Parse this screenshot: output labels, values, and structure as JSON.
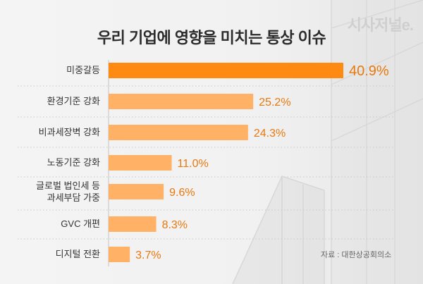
{
  "title": "우리 기업에 영향을 미치는 통상 이슈",
  "watermark": "시사저널e.",
  "source": "자료 : 대한상공회의소",
  "colors": {
    "highlight": "#ff8a12",
    "bar": "#ffb266",
    "value_text": "#e8790f",
    "label": "#333333"
  },
  "chart_data": {
    "type": "bar",
    "orientation": "horizontal",
    "categories": [
      "미중갈등",
      "환경기준 강화",
      "비과세장벽 강화",
      "노동기준 강화",
      "글로벌 법인세 등\n과세부담 가중",
      "GVC 개편",
      "디지털 전환"
    ],
    "values": [
      40.9,
      25.2,
      24.3,
      11.0,
      9.6,
      8.3,
      3.7
    ],
    "data_labels": [
      "40.9%",
      "25.2%",
      "24.3%",
      "11.0%",
      "9.6%",
      "8.3%",
      "3.7%"
    ],
    "unit": "%",
    "highlighted_index": 0,
    "grid": false
  }
}
